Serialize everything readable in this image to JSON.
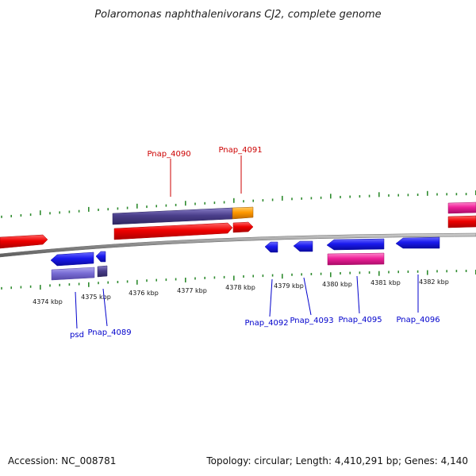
{
  "title": "Polaromonas naphthalenivorans CJ2, complete genome",
  "footer": {
    "accession": "Accession: NC_008781",
    "summary": "Topology: circular; Length: 4,410,291 bp; Genes: 4,140"
  },
  "kbp_labels": [
    "4374 kbp",
    "4375 kbp",
    "4376 kbp",
    "4377 kbp",
    "4378 kbp",
    "4379 kbp",
    "4380 kbp",
    "4381 kbp",
    "4382 kbp"
  ],
  "forward_gene_labels": [
    "Pnap_4090",
    "Pnap_4091"
  ],
  "reverse_gene_labels": [
    "psd",
    "Pnap_4089",
    "Pnap_4092",
    "Pnap_4093",
    "Pnap_4095",
    "Pnap_4096"
  ],
  "colors": {
    "forward_gene": "#ee0000",
    "reverse_gene": "#1a1aee",
    "cds_dark": "#4b3f8c",
    "cds_orange": "#ff9900",
    "cds_pink": "#ee2299",
    "tick": "#2e8b2e",
    "backbone": "#888888"
  }
}
